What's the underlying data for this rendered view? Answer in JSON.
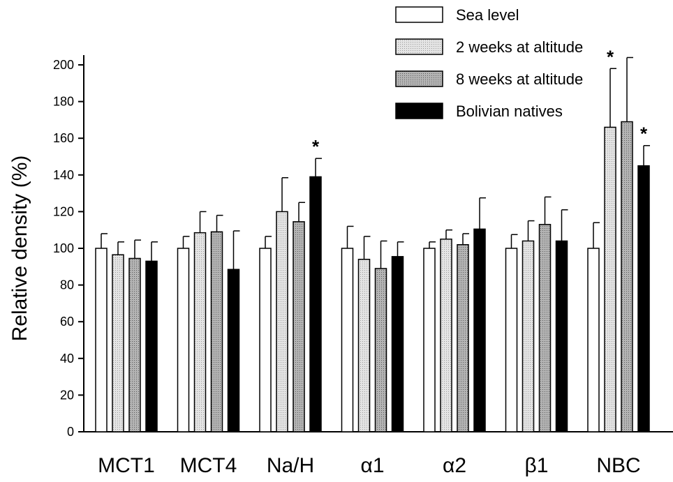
{
  "chart_data": {
    "type": "bar",
    "ylabel": "Relative density (%)",
    "xlabel": "",
    "ylim": [
      0,
      200
    ],
    "yticks": [
      0,
      20,
      40,
      60,
      80,
      100,
      120,
      140,
      160,
      180,
      200
    ],
    "grid": false,
    "legend_position": "top-right",
    "categories": [
      "MCT1",
      "MCT4",
      "Na/H",
      "α1",
      "α2",
      "β1",
      "NBC"
    ],
    "series": [
      {
        "name": "Sea level",
        "fill": "#ffffff",
        "values": [
          100,
          100,
          100,
          100,
          100,
          100,
          100
        ],
        "errors": [
          8,
          6.5,
          6.5,
          12,
          3.5,
          7.5,
          14
        ]
      },
      {
        "name": "2 weeks at altitude",
        "fill": "#e4e4e4",
        "values": [
          96.5,
          108.5,
          120,
          94,
          105,
          104,
          166
        ],
        "errors": [
          7,
          11.5,
          18.5,
          12.5,
          5,
          11,
          32
        ]
      },
      {
        "name": "8 weeks at altitude",
        "fill": "#b4b4b4",
        "values": [
          94.5,
          109,
          114.5,
          89,
          102,
          113,
          169
        ],
        "errors": [
          10,
          9,
          10.5,
          15,
          6,
          15,
          35
        ]
      },
      {
        "name": "Bolivian natives",
        "fill": "#000000",
        "values": [
          93,
          88.5,
          139,
          95.5,
          110.5,
          104,
          145
        ],
        "errors": [
          10.5,
          21,
          10,
          8,
          17,
          17,
          11
        ]
      }
    ],
    "significance": [
      {
        "category": "Na/H",
        "series": "Bolivian natives",
        "label": "*"
      },
      {
        "category": "NBC",
        "series": "2 weeks at altitude",
        "label": "*"
      },
      {
        "category": "NBC",
        "series": "Bolivian natives",
        "label": "*"
      }
    ]
  }
}
